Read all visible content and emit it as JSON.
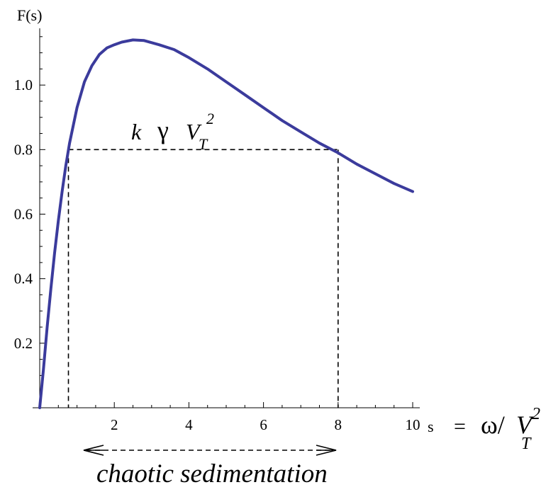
{
  "chart_data": {
    "type": "line",
    "ylabel": "F(s)",
    "xlabel": {
      "s": "s",
      "eq": "=",
      "omega": "ω/",
      "V": "V",
      "sub": "T",
      "sup": "2"
    },
    "xlim": [
      0,
      10
    ],
    "ylim": [
      0,
      1.2
    ],
    "xticks": [
      2,
      4,
      6,
      8,
      10
    ],
    "xtick_labels": [
      "2",
      "4",
      "6",
      "8",
      "10"
    ],
    "yticks": [
      0.2,
      0.4,
      0.6,
      0.8,
      1.0
    ],
    "ytick_labels": [
      "0.2",
      "0.4",
      "0.6",
      "0.8",
      "1.0"
    ],
    "series": [
      {
        "color": "#3b3b9c",
        "points": [
          [
            0,
            0
          ],
          [
            0.1,
            0.12
          ],
          [
            0.2,
            0.25
          ],
          [
            0.3,
            0.37
          ],
          [
            0.4,
            0.48
          ],
          [
            0.5,
            0.58
          ],
          [
            0.6,
            0.67
          ],
          [
            0.7,
            0.75
          ],
          [
            0.8,
            0.82
          ],
          [
            1.0,
            0.93
          ],
          [
            1.2,
            1.01
          ],
          [
            1.4,
            1.06
          ],
          [
            1.6,
            1.095
          ],
          [
            1.8,
            1.115
          ],
          [
            2.0,
            1.125
          ],
          [
            2.2,
            1.133
          ],
          [
            2.5,
            1.14
          ],
          [
            2.8,
            1.138
          ],
          [
            3.2,
            1.125
          ],
          [
            3.6,
            1.11
          ],
          [
            4.0,
            1.085
          ],
          [
            4.5,
            1.05
          ],
          [
            5.0,
            1.01
          ],
          [
            5.5,
            0.97
          ],
          [
            6.0,
            0.93
          ],
          [
            6.5,
            0.89
          ],
          [
            7.0,
            0.855
          ],
          [
            7.5,
            0.82
          ],
          [
            8.0,
            0.79
          ],
          [
            8.5,
            0.755
          ],
          [
            9.0,
            0.725
          ],
          [
            9.5,
            0.695
          ],
          [
            10.0,
            0.67
          ]
        ]
      }
    ],
    "threshold": {
      "y": 0.8,
      "x_left": 0.77,
      "x_right": 8.0,
      "label": {
        "k": "k",
        "gamma": "γ",
        "V": "V",
        "sub": "T",
        "sup": "2"
      }
    },
    "annotation": "chaotic sedimentation",
    "grid": false
  }
}
